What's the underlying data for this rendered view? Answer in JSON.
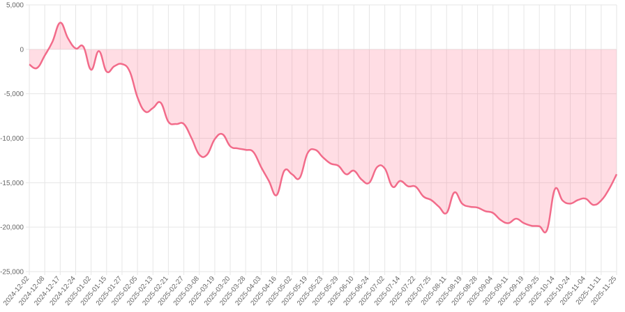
{
  "chart_data": {
    "type": "line",
    "categories": [
      "2024-12-02",
      null,
      "2024-12-08",
      null,
      "2024-12-17",
      null,
      "2024-12-24",
      null,
      "2025-01-02",
      null,
      "2025-01-15",
      null,
      "2025-01-27",
      null,
      "2025-02-05",
      null,
      "2025-02-13",
      null,
      "2025-02-21",
      null,
      "2025-02-27",
      null,
      "2025-03-08",
      null,
      "2025-03-19",
      null,
      "2025-03-20",
      null,
      "2025-03-28",
      null,
      "2025-04-03",
      null,
      "2025-04-16",
      null,
      "2025-05-02",
      null,
      "2025-05-19",
      null,
      "2025-05-23",
      null,
      "2025-05-29",
      null,
      "2025-06-10",
      null,
      "2025-06-24",
      null,
      "2025-07-02",
      null,
      "2025-07-14",
      null,
      "2025-07-22",
      null,
      "2025-07-25",
      null,
      "2025-08-11",
      null,
      "2025-08-19",
      null,
      "2025-08-28",
      null,
      "2025-09-04",
      null,
      "2025-09-11",
      null,
      "2025-09-19",
      null,
      "2025-09-25",
      null,
      "2025-10-14",
      null,
      "2025-10-24",
      null,
      "2025-11-04",
      null,
      "2025-11-11",
      null,
      "2025-11-25"
    ],
    "values": [
      -1700,
      -2100,
      -700,
      860,
      3000,
      1250,
      100,
      300,
      -2300,
      -200,
      -2500,
      -1900,
      -1650,
      -2500,
      -5400,
      -7000,
      -6600,
      -6000,
      -8150,
      -8400,
      -8400,
      -10000,
      -11850,
      -11850,
      -10100,
      -9550,
      -10900,
      -11150,
      -11300,
      -11550,
      -13250,
      -14800,
      -16400,
      -13650,
      -14050,
      -14450,
      -11700,
      -11300,
      -12150,
      -12850,
      -13100,
      -14050,
      -13650,
      -14650,
      -15000,
      -13250,
      -13400,
      -15450,
      -14800,
      -15400,
      -15450,
      -16550,
      -16950,
      -17700,
      -18400,
      -16100,
      -17350,
      -17700,
      -17800,
      -18200,
      -18400,
      -19200,
      -19550,
      -19050,
      -19550,
      -19850,
      -19900,
      -20300,
      -15750,
      -17000,
      -17350,
      -16950,
      -16800,
      -17500,
      -17000,
      -15750,
      -14050
    ],
    "color": "#f26b8a",
    "fill": "rgba(255, 99, 132, 0.22)",
    "ylim": [
      -25000,
      5000
    ],
    "yticks": [
      {
        "value": -25000,
        "label": "-25,000"
      },
      {
        "value": -20000,
        "label": "-20,000"
      },
      {
        "value": -15000,
        "label": "-15,000"
      },
      {
        "value": -10000,
        "label": "-10,000"
      },
      {
        "value": -5000,
        "label": "-5,000"
      },
      0,
      {
        "value": 5000,
        "label": "5,000"
      }
    ],
    "grid": true
  }
}
